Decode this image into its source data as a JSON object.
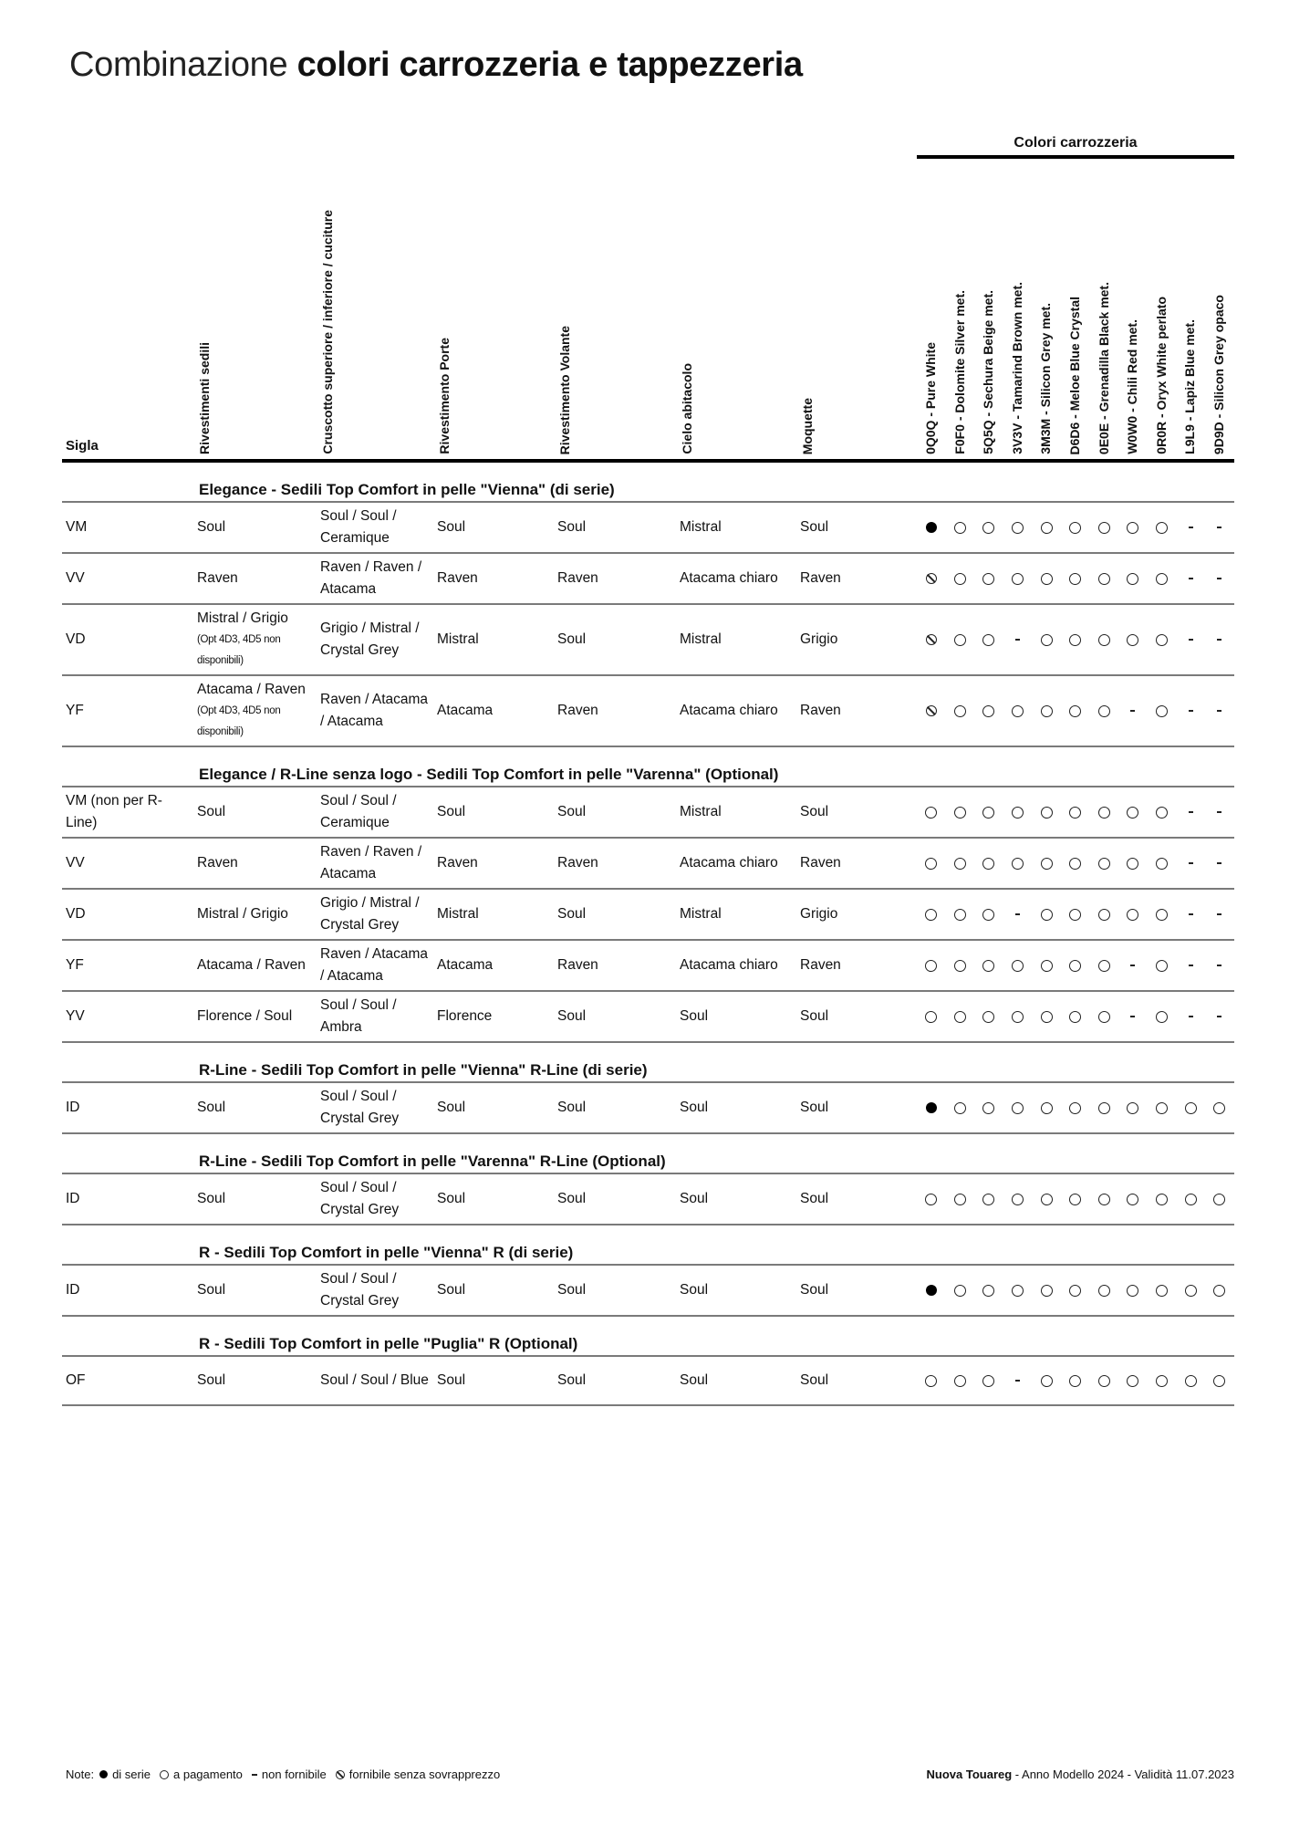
{
  "title": {
    "light": "Combinazione ",
    "bold": "colori carrozzeria e tappezzeria"
  },
  "colors_group_label": "Colori carrozzeria",
  "columns": {
    "sigla": "Sigla",
    "fields": [
      "Rivestimenti sedili",
      "Cruscotto superiore / inferiore / cuciture",
      "Rivestimento Porte",
      "Rivestimento Volante",
      "Cielo abitacolo",
      "Moquette"
    ],
    "colors": [
      "0Q0Q - Pure White",
      "F0F0 - Dolomite Silver met.",
      "5Q5Q - Sechura Beige met.",
      "3V3V - Tamarind Brown met.",
      "3M3M - Silicon Grey met.",
      "D6D6 - Meloe Blue Crystal",
      "0E0E - Grenadilla Black met.",
      "W0W0 - Chili Red met.",
      "0R0R - Oryx White perlato",
      "L9L9 - Lapiz Blue met.",
      "9D9D - Silicon Grey opaco"
    ]
  },
  "symbols": {
    "std": "●",
    "opt": "○",
    "na": "-",
    "free": "⊘"
  },
  "sections": [
    {
      "title": "Elegance - Sedili Top Comfort in pelle \"Vienna\" (di serie)",
      "rows": [
        {
          "sigla": "VM",
          "seat": "Soul",
          "dash": "Soul / Soul / Ceramique",
          "door": "Soul",
          "wheel": "Soul",
          "roof": "Mistral",
          "carpet": "Soul",
          "colors": [
            "std",
            "opt",
            "opt",
            "opt",
            "opt",
            "opt",
            "opt",
            "opt",
            "opt",
            "na",
            "na"
          ]
        },
        {
          "sigla": "VV",
          "seat": "Raven",
          "dash": "Raven / Raven / Atacama",
          "door": "Raven",
          "wheel": "Raven",
          "roof": "Atacama chiaro",
          "carpet": "Raven",
          "colors": [
            "free",
            "opt",
            "opt",
            "opt",
            "opt",
            "opt",
            "opt",
            "opt",
            "opt",
            "na",
            "na"
          ]
        },
        {
          "sigla": "VD",
          "seat": "Mistral / Grigio",
          "seat_note": "(Opt 4D3, 4D5 non disponibili)",
          "dash": "Grigio / Mistral / Crystal Grey",
          "door": "Mistral",
          "wheel": "Soul",
          "roof": "Mistral",
          "carpet": "Grigio",
          "colors": [
            "free",
            "opt",
            "opt",
            "na",
            "opt",
            "opt",
            "opt",
            "opt",
            "opt",
            "na",
            "na"
          ]
        },
        {
          "sigla": "YF",
          "seat": "Atacama / Raven",
          "seat_note": "(Opt 4D3, 4D5 non disponibili)",
          "dash": "Raven / Atacama / Atacama",
          "door": "Atacama",
          "wheel": "Raven",
          "roof": "Atacama chiaro",
          "carpet": "Raven",
          "colors": [
            "free",
            "opt",
            "opt",
            "opt",
            "opt",
            "opt",
            "opt",
            "na",
            "opt",
            "na",
            "na"
          ]
        }
      ]
    },
    {
      "title": "Elegance / R-Line senza logo - Sedili Top Comfort in pelle \"Varenna\" (Optional)",
      "rows": [
        {
          "sigla": "VM (non per R-Line)",
          "seat": "Soul",
          "dash": "Soul / Soul / Ceramique",
          "door": "Soul",
          "wheel": "Soul",
          "roof": "Mistral",
          "carpet": "Soul",
          "colors": [
            "opt",
            "opt",
            "opt",
            "opt",
            "opt",
            "opt",
            "opt",
            "opt",
            "opt",
            "na",
            "na"
          ]
        },
        {
          "sigla": "VV",
          "seat": "Raven",
          "dash": "Raven / Raven / Atacama",
          "door": "Raven",
          "wheel": "Raven",
          "roof": "Atacama chiaro",
          "carpet": "Raven",
          "colors": [
            "opt",
            "opt",
            "opt",
            "opt",
            "opt",
            "opt",
            "opt",
            "opt",
            "opt",
            "na",
            "na"
          ]
        },
        {
          "sigla": "VD",
          "seat": "Mistral / Grigio",
          "dash": "Grigio / Mistral / Crystal Grey",
          "door": "Mistral",
          "wheel": "Soul",
          "roof": "Mistral",
          "carpet": "Grigio",
          "colors": [
            "opt",
            "opt",
            "opt",
            "na",
            "opt",
            "opt",
            "opt",
            "opt",
            "opt",
            "na",
            "na"
          ]
        },
        {
          "sigla": "YF",
          "seat": "Atacama / Raven",
          "dash": "Raven / Atacama / Atacama",
          "door": "Atacama",
          "wheel": "Raven",
          "roof": "Atacama chiaro",
          "carpet": "Raven",
          "colors": [
            "opt",
            "opt",
            "opt",
            "opt",
            "opt",
            "opt",
            "opt",
            "na",
            "opt",
            "na",
            "na"
          ]
        },
        {
          "sigla": "YV",
          "seat": "Florence / Soul",
          "dash": "Soul / Soul / Ambra",
          "door": "Florence",
          "wheel": "Soul",
          "roof": "Soul",
          "carpet": "Soul",
          "colors": [
            "opt",
            "opt",
            "opt",
            "opt",
            "opt",
            "opt",
            "opt",
            "na",
            "opt",
            "na",
            "na"
          ]
        }
      ]
    },
    {
      "title": "R-Line - Sedili Top Comfort in pelle \"Vienna\" R-Line (di serie)",
      "rows": [
        {
          "sigla": "ID",
          "seat": "Soul",
          "dash": "Soul / Soul / Crystal Grey",
          "door": "Soul",
          "wheel": "Soul",
          "roof": "Soul",
          "carpet": "Soul",
          "colors": [
            "std",
            "opt",
            "opt",
            "opt",
            "opt",
            "opt",
            "opt",
            "opt",
            "opt",
            "opt",
            "opt"
          ]
        }
      ]
    },
    {
      "title": "R-Line - Sedili Top Comfort in pelle \"Varenna\" R-Line (Optional)",
      "rows": [
        {
          "sigla": "ID",
          "seat": "Soul",
          "dash": "Soul / Soul / Crystal Grey",
          "door": "Soul",
          "wheel": "Soul",
          "roof": "Soul",
          "carpet": "Soul",
          "colors": [
            "opt",
            "opt",
            "opt",
            "opt",
            "opt",
            "opt",
            "opt",
            "opt",
            "opt",
            "opt",
            "opt"
          ]
        }
      ]
    },
    {
      "title": "R - Sedili Top Comfort in pelle \"Vienna\" R (di serie)",
      "rows": [
        {
          "sigla": "ID",
          "seat": "Soul",
          "dash": "Soul / Soul / Crystal Grey",
          "door": "Soul",
          "wheel": "Soul",
          "roof": "Soul",
          "carpet": "Soul",
          "colors": [
            "std",
            "opt",
            "opt",
            "opt",
            "opt",
            "opt",
            "opt",
            "opt",
            "opt",
            "opt",
            "opt"
          ]
        }
      ]
    },
    {
      "title": "R - Sedili Top Comfort in pelle \"Puglia\" R (Optional)",
      "rows": [
        {
          "sigla": "OF",
          "seat": "Soul",
          "dash": "Soul / Soul / Blue",
          "door": "Soul",
          "wheel": "Soul",
          "roof": "Soul",
          "carpet": "Soul",
          "colors": [
            "opt",
            "opt",
            "opt",
            "na",
            "opt",
            "opt",
            "opt",
            "opt",
            "opt",
            "opt",
            "opt"
          ]
        }
      ]
    }
  ],
  "footer": {
    "note_label": "Note:",
    "legend": [
      {
        "symbol": "std",
        "label": "di serie"
      },
      {
        "symbol": "opt",
        "label": "a pagamento"
      },
      {
        "symbol": "na",
        "label": "non fornibile"
      },
      {
        "symbol": "free",
        "label": "fornibile senza sovrapprezzo"
      }
    ],
    "model": "Nuova Touareg",
    "validity": " - Anno Modello 2024 - Validità 11.07.2023"
  }
}
